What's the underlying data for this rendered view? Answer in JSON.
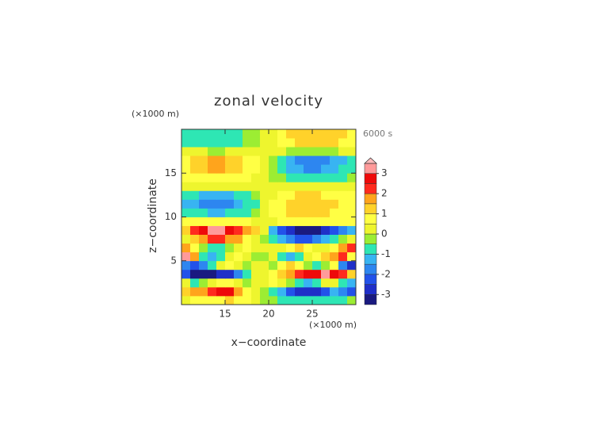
{
  "chart_data": {
    "type": "contour",
    "title": "zonal velocity",
    "x_label": "x−coordinate",
    "y_label": "z−coordinate",
    "x_unit": "(×1000 m)",
    "y_unit": "(×1000 m)",
    "time_label": "6000 s",
    "xlim": [
      10,
      30
    ],
    "ylim": [
      0,
      20
    ],
    "xticks": [
      15,
      20,
      25
    ],
    "yticks": [
      5,
      10,
      15
    ],
    "x": [
      10.5,
      11.5,
      12.5,
      13.5,
      14.5,
      15.5,
      16.5,
      17.5,
      18.5,
      19.5,
      20.5,
      21.5,
      22.5,
      23.5,
      24.5,
      25.5,
      26.5,
      27.5,
      28.5,
      29.5
    ],
    "y": [
      0.5,
      1.5,
      2.5,
      3.5,
      4.5,
      5.5,
      6.5,
      7.5,
      8.5,
      9.5,
      10.5,
      11.5,
      12.5,
      13.5,
      14.5,
      15.5,
      16.5,
      17.5,
      18.5,
      19.5
    ],
    "z": [
      [
        0.5,
        0.8,
        0.6,
        0.8,
        1.0,
        1.2,
        0.8,
        0.6,
        0.3,
        0.0,
        -0.3,
        -0.5,
        -0.6,
        -0.8,
        -0.9,
        -0.8,
        -0.6,
        -0.6,
        -0.5,
        -0.4
      ],
      [
        1.5,
        2.0,
        1.8,
        2.2,
        2.8,
        2.8,
        2.0,
        1.0,
        0.3,
        0.0,
        -0.5,
        -1.2,
        -2.0,
        -2.6,
        -2.8,
        -2.6,
        -2.0,
        -1.2,
        -1.5,
        -2.0
      ],
      [
        0.5,
        -0.5,
        -0.3,
        0.5,
        1.0,
        0.8,
        0.3,
        -0.3,
        0.2,
        0.1,
        0.6,
        0.5,
        -0.3,
        -0.8,
        -1.0,
        -0.5,
        0.4,
        0.2,
        -0.5,
        -1.0
      ],
      [
        -2.0,
        -3.2,
        -3.5,
        -3.2,
        -2.8,
        -2.5,
        -1.8,
        -0.8,
        0.2,
        0.3,
        0.8,
        1.5,
        2.0,
        2.5,
        2.8,
        3.0,
        3.2,
        2.8,
        2.2,
        1.5
      ],
      [
        -1.5,
        -2.0,
        -1.5,
        -0.5,
        0.2,
        0.8,
        0.3,
        -0.4,
        0.2,
        0.3,
        -0.3,
        0.6,
        1.3,
        0.8,
        -0.2,
        -0.8,
        -0.3,
        0.6,
        -1.5,
        -2.8
      ],
      [
        3.2,
        2.0,
        -0.5,
        -1.2,
        -0.8,
        0.2,
        0.6,
        0.3,
        -0.3,
        0.0,
        0.3,
        -0.5,
        -1.0,
        -0.6,
        0.3,
        1.0,
        1.5,
        2.0,
        2.5,
        1.0
      ],
      [
        2.0,
        1.0,
        0.0,
        -0.6,
        -0.8,
        -0.4,
        0.3,
        0.8,
        0.5,
        0.2,
        0.1,
        0.5,
        1.0,
        1.3,
        1.0,
        0.5,
        0.2,
        0.8,
        1.8,
        2.2
      ],
      [
        0.5,
        1.2,
        1.8,
        2.2,
        2.3,
        2.0,
        1.6,
        1.0,
        0.5,
        0.0,
        -0.6,
        -1.2,
        -1.8,
        -2.0,
        -2.0,
        -1.8,
        -1.2,
        -0.5,
        0.0,
        0.3
      ],
      [
        1.5,
        2.2,
        2.8,
        3.2,
        3.2,
        2.9,
        2.5,
        2.0,
        1.3,
        0.3,
        -1.2,
        -2.2,
        -2.8,
        -3.1,
        -3.2,
        -3.0,
        -2.6,
        -2.0,
        -1.5,
        -1.0
      ],
      [
        0.6,
        0.7,
        0.8,
        0.8,
        0.8,
        0.8,
        0.7,
        0.6,
        0.5,
        0.4,
        0.5,
        0.6,
        0.7,
        0.8,
        0.8,
        0.8,
        0.8,
        0.7,
        0.7,
        0.6
      ],
      [
        -0.6,
        -0.8,
        -0.9,
        -1.0,
        -1.0,
        -0.9,
        -0.8,
        -0.6,
        -0.2,
        0.3,
        0.6,
        0.9,
        1.1,
        1.2,
        1.2,
        1.2,
        1.1,
        1.0,
        0.9,
        0.8
      ],
      [
        -1.0,
        -1.3,
        -1.5,
        -1.6,
        -1.6,
        -1.5,
        -1.3,
        -0.9,
        -0.5,
        0.2,
        0.6,
        1.0,
        1.3,
        1.5,
        1.5,
        1.5,
        1.4,
        1.2,
        1.0,
        0.9
      ],
      [
        -0.7,
        -0.9,
        -1.0,
        -1.1,
        -1.1,
        -1.0,
        -0.9,
        -0.6,
        -0.3,
        0.2,
        0.5,
        0.8,
        1.0,
        1.1,
        1.1,
        1.1,
        1.0,
        0.9,
        0.8,
        0.7
      ],
      [
        0.2,
        0.2,
        0.3,
        0.3,
        0.3,
        0.3,
        0.3,
        0.3,
        0.3,
        0.3,
        0.3,
        0.3,
        0.3,
        0.3,
        0.3,
        0.3,
        0.3,
        0.3,
        0.3,
        0.2
      ],
      [
        0.6,
        0.8,
        0.9,
        1.0,
        1.0,
        0.9,
        0.8,
        0.7,
        0.5,
        0.3,
        -0.1,
        -0.4,
        -0.7,
        -0.8,
        -0.9,
        -0.9,
        -0.8,
        -0.7,
        -0.5,
        -0.4
      ],
      [
        1.0,
        1.3,
        1.5,
        1.6,
        1.6,
        1.5,
        1.3,
        1.0,
        0.7,
        0.3,
        -0.3,
        -0.8,
        -1.2,
        -1.4,
        -1.5,
        -1.5,
        -1.4,
        -1.2,
        -0.9,
        -0.7
      ],
      [
        1.0,
        1.3,
        1.5,
        1.6,
        1.6,
        1.5,
        1.3,
        1.0,
        0.6,
        0.3,
        -0.3,
        -0.8,
        -1.2,
        -1.5,
        -1.6,
        -1.6,
        -1.5,
        -1.3,
        -1.0,
        -0.8
      ],
      [
        0.3,
        0.2,
        0.1,
        0.0,
        0.0,
        0.1,
        0.2,
        0.3,
        0.3,
        0.3,
        0.2,
        0.2,
        0.0,
        -0.2,
        -0.3,
        -0.3,
        -0.2,
        0.0,
        0.2,
        0.3
      ],
      [
        -0.6,
        -0.8,
        -0.8,
        -0.8,
        -0.8,
        -0.7,
        -0.6,
        -0.4,
        -0.2,
        0.2,
        0.4,
        0.6,
        1.0,
        1.2,
        1.2,
        1.2,
        1.2,
        1.1,
        1.0,
        0.9
      ],
      [
        -0.7,
        -0.8,
        -0.8,
        -0.8,
        -0.8,
        -0.8,
        -0.7,
        -0.4,
        -0.2,
        0.2,
        0.4,
        0.6,
        1.1,
        1.2,
        1.2,
        1.2,
        1.2,
        1.2,
        1.1,
        1.0
      ]
    ],
    "levels": [
      -3.5,
      -3,
      -2.5,
      -2,
      -1.5,
      -1,
      -0.5,
      0,
      0.5,
      1,
      1.5,
      2,
      2.5,
      3,
      3.5
    ],
    "colors": [
      "#1a1a80",
      "#1f2fc8",
      "#2252ea",
      "#2d86f0",
      "#38b4f2",
      "#2ee6b4",
      "#9ced33",
      "#eef52e",
      "#ffff44",
      "#ffd22a",
      "#ffa41c",
      "#ff2a1e",
      "#ee0a0a",
      "#ff9a9a"
    ],
    "extend_color": "#ffbcbc",
    "colorbar_ticks": [
      -3,
      -2,
      -1,
      0,
      1,
      2,
      3
    ]
  }
}
